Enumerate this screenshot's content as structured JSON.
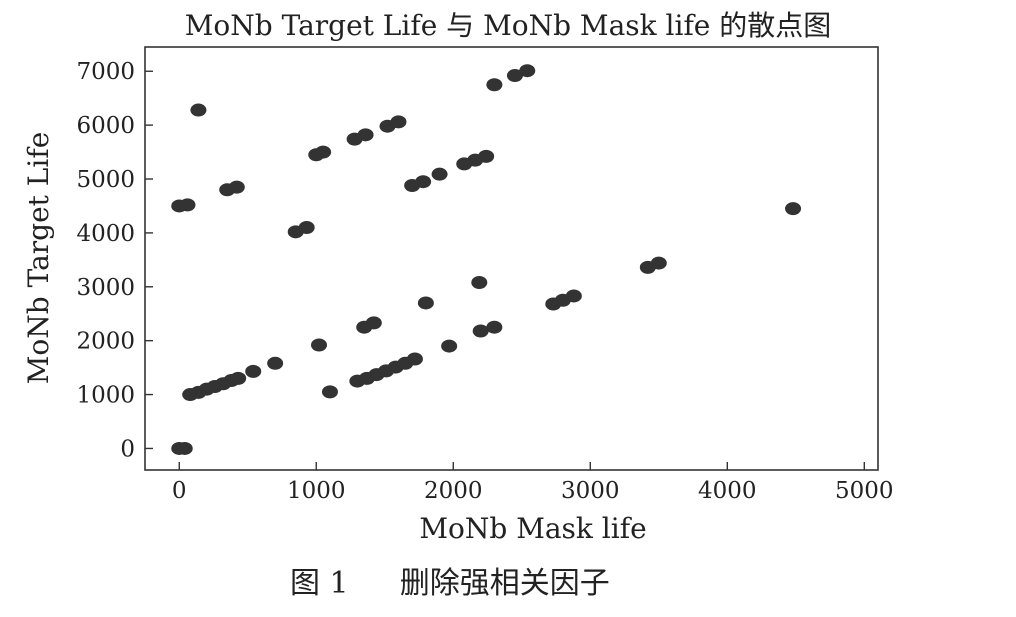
{
  "chart_data": {
    "type": "scatter",
    "title": "MoNb Target Life 与 MoNb Mask life 的散点图",
    "xlabel": "MoNb Mask life",
    "ylabel": "MoNb Target Life",
    "xlim": [
      -250,
      5100
    ],
    "ylim": [
      -400,
      7450
    ],
    "xticks": [
      0,
      1000,
      2000,
      3000,
      4000,
      5000
    ],
    "yticks": [
      0,
      1000,
      2000,
      3000,
      4000,
      5000,
      6000,
      7000
    ],
    "xtick_labels": [
      "0",
      "1000",
      "2000",
      "3000",
      "4000",
      "5000"
    ],
    "ytick_labels": [
      "0",
      "1000",
      "2000",
      "3000",
      "4000",
      "5000",
      "6000",
      "7000"
    ],
    "grid": false,
    "legend": "none",
    "marker_color": "#333333",
    "points": [
      [
        0,
        0
      ],
      [
        40,
        0
      ],
      [
        80,
        1000
      ],
      [
        140,
        1040
      ],
      [
        200,
        1100
      ],
      [
        260,
        1150
      ],
      [
        320,
        1200
      ],
      [
        380,
        1260
      ],
      [
        430,
        1300
      ],
      [
        540,
        1430
      ],
      [
        700,
        1580
      ],
      [
        1020,
        1920
      ],
      [
        1100,
        1050
      ],
      [
        1300,
        1250
      ],
      [
        1370,
        1300
      ],
      [
        1440,
        1370
      ],
      [
        1510,
        1440
      ],
      [
        1580,
        1510
      ],
      [
        1650,
        1580
      ],
      [
        1720,
        1660
      ],
      [
        1970,
        1900
      ],
      [
        2200,
        2180
      ],
      [
        2300,
        2250
      ],
      [
        1350,
        2250
      ],
      [
        1420,
        2330
      ],
      [
        1800,
        2700
      ],
      [
        2190,
        3080
      ],
      [
        2730,
        2680
      ],
      [
        2800,
        2750
      ],
      [
        2880,
        2830
      ],
      [
        3420,
        3360
      ],
      [
        3500,
        3440
      ],
      [
        4480,
        4450
      ],
      [
        0,
        4500
      ],
      [
        60,
        4520
      ],
      [
        350,
        4800
      ],
      [
        420,
        4850
      ],
      [
        850,
        4020
      ],
      [
        930,
        4100
      ],
      [
        1000,
        5450
      ],
      [
        1050,
        5500
      ],
      [
        1280,
        5740
      ],
      [
        1360,
        5820
      ],
      [
        1520,
        5980
      ],
      [
        1600,
        6060
      ],
      [
        140,
        6280
      ],
      [
        1700,
        4880
      ],
      [
        1780,
        4950
      ],
      [
        1900,
        5090
      ],
      [
        2080,
        5280
      ],
      [
        2160,
        5350
      ],
      [
        2240,
        5420
      ],
      [
        2300,
        6750
      ],
      [
        2450,
        6920
      ],
      [
        2540,
        7010
      ]
    ]
  },
  "caption": {
    "figure_number": "图 1",
    "text": "删除强相关因子"
  }
}
